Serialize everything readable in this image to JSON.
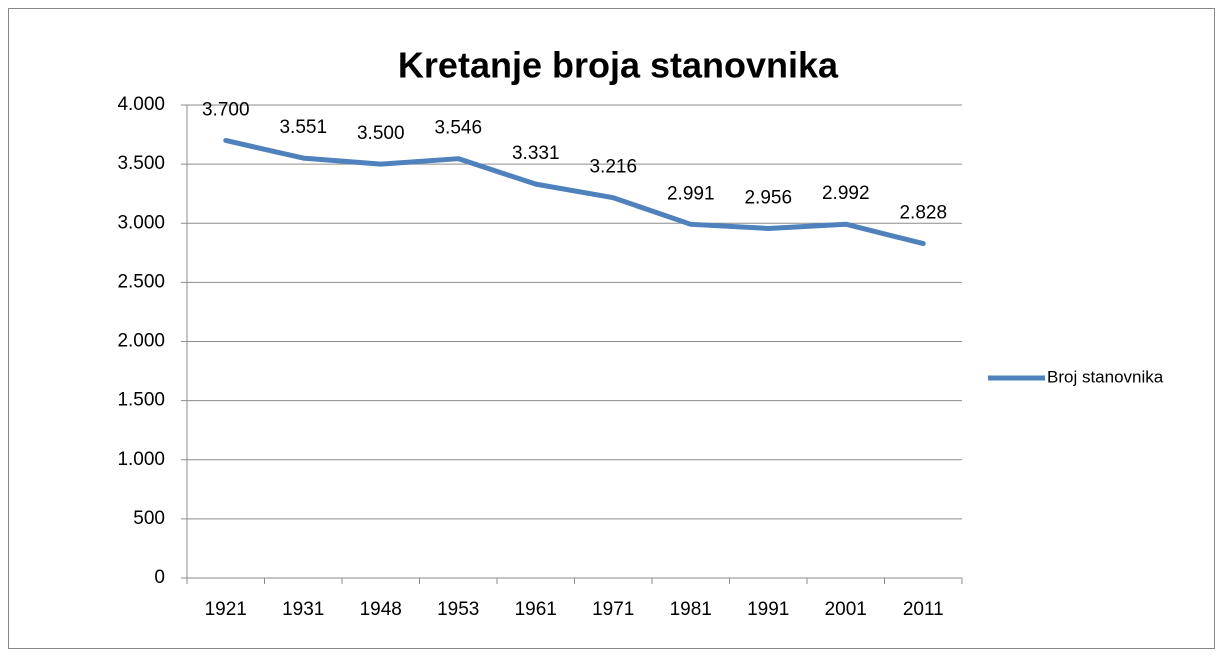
{
  "chart_data": {
    "type": "line",
    "title": "Kretanje broja stanovnika",
    "categories": [
      "1921",
      "1931",
      "1948",
      "1953",
      "1961",
      "1971",
      "1981",
      "1991",
      "2001",
      "2011"
    ],
    "series": [
      {
        "name": "Broj stanovnika",
        "color": "#4f81bd",
        "values": [
          3700,
          3551,
          3500,
          3546,
          3331,
          3216,
          2991,
          2956,
          2992,
          2828
        ],
        "value_labels": [
          "3.700",
          "3.551",
          "3.500",
          "3.546",
          "3.331",
          "3.216",
          "2.991",
          "2.956",
          "2.992",
          "2.828"
        ]
      }
    ],
    "ylim": [
      0,
      4000
    ],
    "yticks": [
      0,
      500,
      {
        "value": 1000,
        "label": "1.000"
      },
      {
        "value": 1500,
        "label": "1.500"
      },
      {
        "value": 2000,
        "label": "2.000"
      },
      {
        "value": 2500,
        "label": "2.500"
      },
      {
        "value": 3000,
        "label": "3.000"
      },
      {
        "value": 3500,
        "label": "3.500"
      },
      {
        "value": 4000,
        "label": "4.000"
      }
    ],
    "grid": true,
    "legend": "right"
  }
}
